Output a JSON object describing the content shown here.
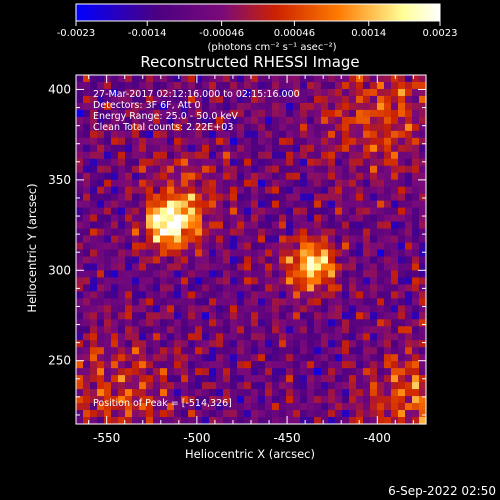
{
  "chart_data": {
    "type": "heatmap",
    "title": "Reconstructed RHESSI Image",
    "xlabel": "Heliocentric X (arcsec)",
    "ylabel": "Heliocentric Y (arcsec)",
    "xlim": [
      -567,
      -373
    ],
    "ylim": [
      215,
      408
    ],
    "x_ticks": [
      -550,
      -500,
      -450,
      -400
    ],
    "y_ticks": [
      250,
      300,
      350,
      400
    ],
    "colorbar": {
      "range": [
        -0.0023,
        0.0023
      ],
      "ticks": [
        -0.0023,
        -0.0014,
        -0.00046,
        0.00046,
        0.0014,
        0.0023
      ],
      "tick_labels": [
        "-0.0023",
        "-0.0014",
        "-0.00046",
        "0.00046",
        "0.0014",
        "0.0023"
      ],
      "units": "(photons cm⁻² s⁻¹ asec⁻²)",
      "colors": [
        "#0000ff",
        "#4b0082",
        "#7a0a7a",
        "#cc2200",
        "#ff7a00",
        "#ffff99",
        "#ffffff"
      ]
    },
    "annotations": [
      "27-Mar-2017 02:12:16.000 to 02:15:16.000",
      "Detectors: 3F 6F, Att 0",
      "Energy Range: 25.0 - 50.0 keV",
      "Clean     Total counts: 2.22E+03"
    ],
    "peak_label": "Position of Peak = [-514,326]",
    "sources": [
      {
        "x": -514,
        "y": 326,
        "intensity": 0.0023
      },
      {
        "x": -437,
        "y": 303,
        "intensity": 0.0021
      }
    ]
  },
  "footer": {
    "timestamp": "6-Sep-2022 02:50"
  }
}
